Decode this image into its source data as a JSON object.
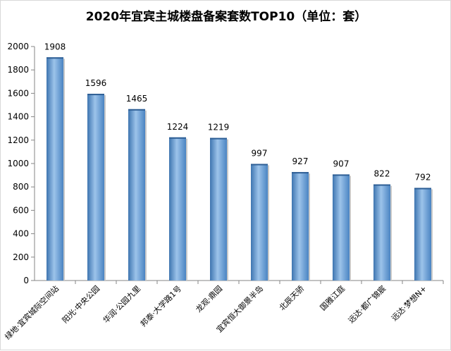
{
  "chart_data": {
    "type": "bar",
    "title": "2020年宜宾主城楼盘备案套数TOP10（单位：套）",
    "categories": [
      "绿地·宜宾城际空间站",
      "阳光·中央公园",
      "华润·公园九里",
      "邦泰·大学路1号",
      "龙观·鼎园",
      "宜宾恒大御景半岛",
      "北辰天骄",
      "国雅江庭",
      "远达·都广锦宸",
      "远达·梦想N+"
    ],
    "values": [
      1908,
      1596,
      1465,
      1224,
      1219,
      997,
      927,
      907,
      822,
      792
    ],
    "ylim": [
      0,
      2000
    ],
    "yticks": [
      0,
      200,
      400,
      600,
      800,
      1000,
      1200,
      1400,
      1600,
      1800,
      2000
    ],
    "xlabel": "",
    "ylabel": "",
    "grid": false,
    "legend": "none",
    "colors": {
      "bar": "#5b9bd5",
      "bar_dark": "#3e75b0",
      "bar_light": "#9cc3ea",
      "axis": "#868686"
    }
  }
}
